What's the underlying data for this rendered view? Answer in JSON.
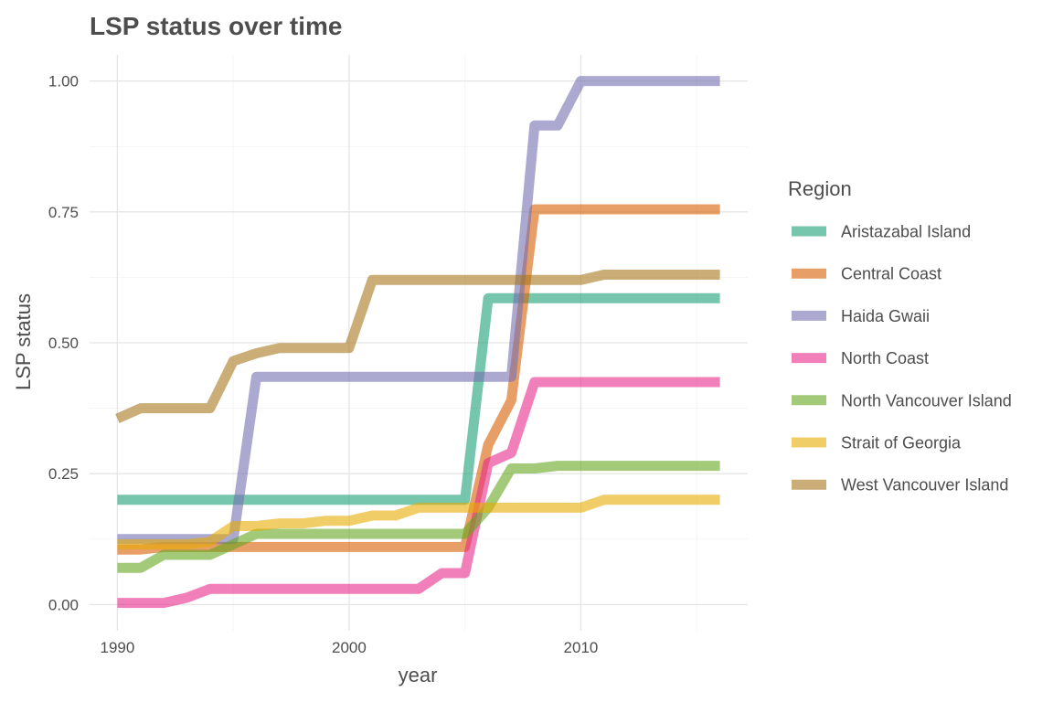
{
  "chart_data": {
    "type": "line",
    "title": "LSP status over time",
    "xlabel": "year",
    "ylabel": "LSP status",
    "xlim": [
      1988.8,
      2017.2
    ],
    "ylim": [
      -0.05,
      1.05
    ],
    "x_ticks": [
      1990,
      2000,
      2010
    ],
    "y_ticks": [
      0.0,
      0.25,
      0.5,
      0.75,
      1.0
    ],
    "x_tick_labels": [
      "1990",
      "2000",
      "2010"
    ],
    "y_tick_labels": [
      "0.00",
      "0.25",
      "0.50",
      "0.75",
      "1.00"
    ],
    "grid": true,
    "legend": {
      "title": "Region",
      "position": "right"
    },
    "x": [
      1990,
      1991,
      1992,
      1993,
      1994,
      1995,
      1996,
      1997,
      1998,
      1999,
      2000,
      2001,
      2002,
      2003,
      2004,
      2005,
      2006,
      2007,
      2008,
      2009,
      2010,
      2011,
      2012,
      2013,
      2014,
      2015,
      2016
    ],
    "series": [
      {
        "name": "Aristazabal Island",
        "color": "#1B9E77",
        "values": [
          0.2,
          0.2,
          0.2,
          0.2,
          0.2,
          0.2,
          0.2,
          0.2,
          0.2,
          0.2,
          0.2,
          0.2,
          0.2,
          0.2,
          0.2,
          0.2,
          0.585,
          0.585,
          0.585,
          0.585,
          0.585,
          0.585,
          0.585,
          0.585,
          0.585,
          0.585,
          0.585
        ]
      },
      {
        "name": "Central Coast",
        "color": "#D95F02",
        "values": [
          0.105,
          0.105,
          0.11,
          0.11,
          0.11,
          0.11,
          0.11,
          0.11,
          0.11,
          0.11,
          0.11,
          0.11,
          0.11,
          0.11,
          0.11,
          0.11,
          0.305,
          0.39,
          0.755,
          0.755,
          0.755,
          0.755,
          0.755,
          0.755,
          0.755,
          0.755,
          0.755
        ]
      },
      {
        "name": "Haida Gwaii",
        "color": "#7570B3",
        "values": [
          0.125,
          0.125,
          0.125,
          0.125,
          0.125,
          0.125,
          0.435,
          0.435,
          0.435,
          0.435,
          0.435,
          0.435,
          0.435,
          0.435,
          0.435,
          0.435,
          0.435,
          0.435,
          0.915,
          0.915,
          1.0,
          1.0,
          1.0,
          1.0,
          1.0,
          1.0,
          1.0
        ]
      },
      {
        "name": "North Coast",
        "color": "#E7298A",
        "values": [
          0.003,
          0.003,
          0.003,
          0.013,
          0.03,
          0.03,
          0.03,
          0.03,
          0.03,
          0.03,
          0.03,
          0.03,
          0.03,
          0.03,
          0.06,
          0.06,
          0.27,
          0.29,
          0.425,
          0.425,
          0.425,
          0.425,
          0.425,
          0.425,
          0.425,
          0.425,
          0.425
        ]
      },
      {
        "name": "North Vancouver Island",
        "color": "#66A61E",
        "values": [
          0.07,
          0.07,
          0.095,
          0.095,
          0.095,
          0.115,
          0.135,
          0.135,
          0.135,
          0.135,
          0.135,
          0.135,
          0.135,
          0.135,
          0.135,
          0.135,
          0.185,
          0.26,
          0.26,
          0.265,
          0.265,
          0.265,
          0.265,
          0.265,
          0.265,
          0.265,
          0.265
        ]
      },
      {
        "name": "Strait of Georgia",
        "color": "#E6AB02",
        "values": [
          0.115,
          0.115,
          0.115,
          0.115,
          0.12,
          0.15,
          0.15,
          0.155,
          0.155,
          0.16,
          0.16,
          0.17,
          0.17,
          0.185,
          0.185,
          0.185,
          0.185,
          0.185,
          0.185,
          0.185,
          0.185,
          0.2,
          0.2,
          0.2,
          0.2,
          0.2,
          0.2
        ]
      },
      {
        "name": "West Vancouver Island",
        "color": "#A6761D",
        "values": [
          0.355,
          0.375,
          0.375,
          0.375,
          0.375,
          0.465,
          0.48,
          0.49,
          0.49,
          0.49,
          0.49,
          0.62,
          0.62,
          0.62,
          0.62,
          0.62,
          0.62,
          0.62,
          0.62,
          0.62,
          0.62,
          0.63,
          0.63,
          0.63,
          0.63,
          0.63,
          0.63
        ]
      }
    ]
  }
}
